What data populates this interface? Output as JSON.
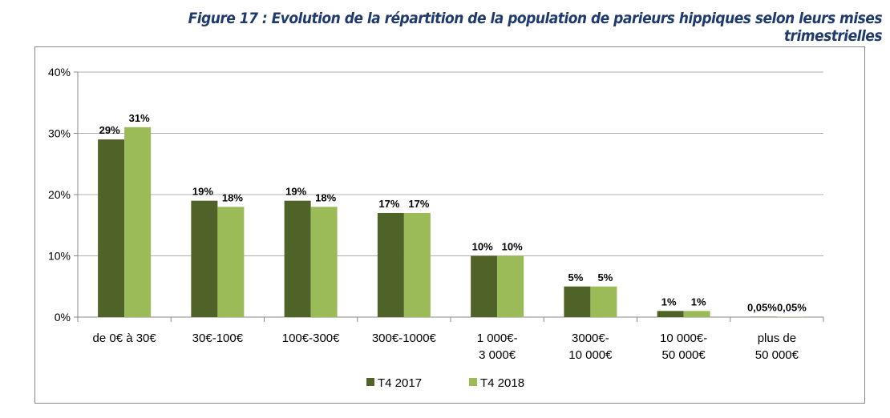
{
  "title": "Figure 17 : Evolution de la répartition de la population de parieurs hippiques selon leurs mises trimestrielles",
  "chart_data": {
    "type": "bar",
    "title": "Figure 17 : Evolution de la répartition de la population de parieurs hippiques selon leurs mises trimestrielles",
    "categories": [
      [
        "de 0€ à 30€"
      ],
      [
        "30€-100€"
      ],
      [
        "100€-300€"
      ],
      [
        "300€-1000€"
      ],
      [
        "1 000€-",
        "3 000€"
      ],
      [
        "3000€-",
        "10 000€"
      ],
      [
        "10 000€-",
        "50 000€"
      ],
      [
        "plus de",
        "50 000€"
      ]
    ],
    "series": [
      {
        "name": "T4 2017",
        "color": "#4f6228",
        "values": [
          29,
          19,
          19,
          17,
          10,
          5,
          1,
          0.05
        ],
        "labels": [
          "29%",
          "19%",
          "19%",
          "17%",
          "10%",
          "5%",
          "1%",
          "0,05%"
        ]
      },
      {
        "name": "T4 2018",
        "color": "#9bbb59",
        "values": [
          31,
          18,
          18,
          17,
          10,
          5,
          1,
          0.05
        ],
        "labels": [
          "31%",
          "18%",
          "18%",
          "17%",
          "10%",
          "5%",
          "1%",
          "0,05%"
        ]
      }
    ],
    "ylim": [
      0,
      40
    ],
    "yticks": [
      0,
      10,
      20,
      30,
      40
    ],
    "ytick_labels": [
      "0%",
      "10%",
      "20%",
      "30%",
      "40%"
    ],
    "grid": true,
    "legend": "bottom"
  }
}
